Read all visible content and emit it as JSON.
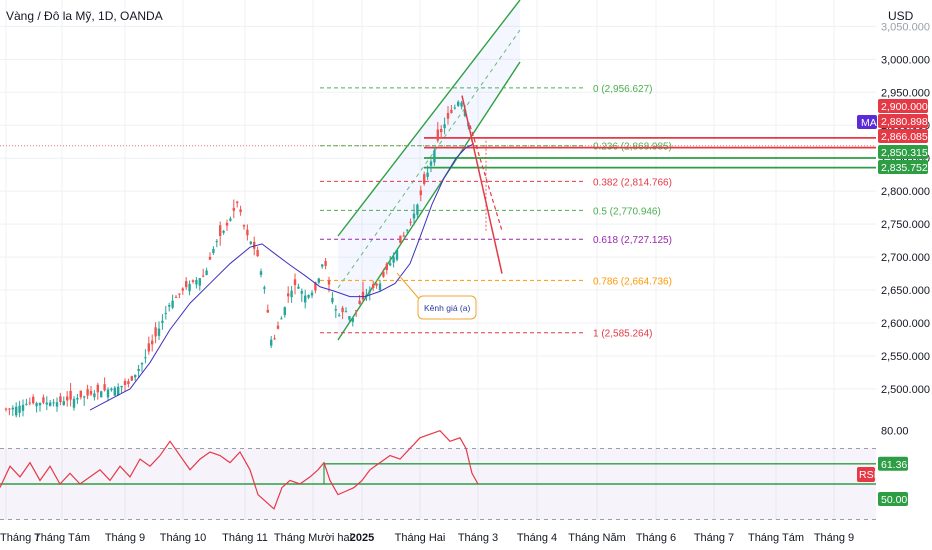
{
  "header": {
    "symbol_title": "Vàng / Đô la Mỹ, 1D, OANDA",
    "currency": "USD"
  },
  "chart_data": {
    "type": "candlestick",
    "title": "Vàng / Đô la Mỹ, 1D, OANDA",
    "xlabel": "",
    "ylabel": "USD",
    "ylim": [
      2465,
      3090
    ],
    "y_ticks": [
      "2,500.000",
      "2,550.000",
      "2,600.000",
      "2,650.000",
      "2,700.000",
      "2,750.000",
      "2,800.000",
      "2,850.000",
      "2,900.000",
      "2,950.000",
      "3,000.000",
      "3,050.000"
    ],
    "x_tick_labels": [
      "Tháng 7",
      "Tháng Tám",
      "Tháng 9",
      "Tháng 10",
      "Tháng 11",
      "Tháng Mười hai",
      "2025",
      "Tháng Hai",
      "Tháng 3",
      "Tháng 4",
      "Tháng Năm",
      "Tháng 6",
      "Tháng 7",
      "Tháng Tám",
      "Tháng 9"
    ],
    "price_path": [
      [
        0,
        2466
      ],
      [
        28,
        2478
      ],
      [
        60,
        2480
      ],
      [
        88,
        2490
      ],
      [
        100,
        2496
      ],
      [
        130,
        2508
      ],
      [
        150,
        2560
      ],
      [
        170,
        2630
      ],
      [
        190,
        2660
      ],
      [
        205,
        2672
      ],
      [
        215,
        2720
      ],
      [
        228,
        2750
      ],
      [
        238,
        2785
      ],
      [
        245,
        2740
      ],
      [
        252,
        2720
      ],
      [
        258,
        2700
      ],
      [
        265,
        2650
      ],
      [
        272,
        2565
      ],
      [
        280,
        2600
      ],
      [
        288,
        2640
      ],
      [
        296,
        2660
      ],
      [
        306,
        2640
      ],
      [
        316,
        2650
      ],
      [
        324,
        2700
      ],
      [
        330,
        2650
      ],
      [
        338,
        2610
      ],
      [
        345,
        2620
      ],
      [
        352,
        2605
      ],
      [
        360,
        2630
      ],
      [
        370,
        2650
      ],
      [
        380,
        2660
      ],
      [
        390,
        2690
      ],
      [
        400,
        2720
      ],
      [
        410,
        2750
      ],
      [
        420,
        2790
      ],
      [
        428,
        2830
      ],
      [
        436,
        2870
      ],
      [
        444,
        2900
      ],
      [
        452,
        2920
      ],
      [
        460,
        2940
      ],
      [
        466,
        2920
      ],
      [
        472,
        2880
      ]
    ],
    "ma_path": [
      [
        90,
        2468
      ],
      [
        130,
        2500
      ],
      [
        150,
        2540
      ],
      [
        170,
        2590
      ],
      [
        190,
        2630
      ],
      [
        210,
        2660
      ],
      [
        230,
        2690
      ],
      [
        250,
        2715
      ],
      [
        262,
        2720
      ],
      [
        275,
        2705
      ],
      [
        290,
        2688
      ],
      [
        305,
        2672
      ],
      [
        320,
        2655
      ],
      [
        335,
        2648
      ],
      [
        350,
        2640
      ],
      [
        365,
        2640
      ],
      [
        380,
        2648
      ],
      [
        395,
        2660
      ],
      [
        410,
        2690
      ],
      [
        420,
        2730
      ],
      [
        432,
        2780
      ],
      [
        444,
        2820
      ],
      [
        456,
        2850
      ],
      [
        466,
        2866
      ],
      [
        474,
        2872
      ]
    ],
    "fibonacci": [
      {
        "level": "0",
        "label": "0 (2,956.627)",
        "price": 2956.627,
        "color": "#4caf50"
      },
      {
        "level": "0.236",
        "label": "0.236 (2,868.985)",
        "price": 2868.985,
        "color": "#4caf50"
      },
      {
        "level": "0.382",
        "label": "0.382 (2,814.766)",
        "price": 2814.766,
        "color": "#e53946"
      },
      {
        "level": "0.5",
        "label": "0.5 (2,770.946)",
        "price": 2770.946,
        "color": "#4caf50"
      },
      {
        "level": "0.618",
        "label": "0.618 (2,727.125)",
        "price": 2727.125,
        "color": "#9c27b0"
      },
      {
        "level": "0.786",
        "label": "0.786 (2,664.736)",
        "price": 2664.736,
        "color": "#ff9800"
      },
      {
        "level": "1",
        "label": "1 (2,585.264)",
        "price": 2585.264,
        "color": "#e53946"
      }
    ],
    "price_badges": [
      {
        "text": "2,900.000",
        "price": 2900.0,
        "color": "#e53946"
      },
      {
        "text": "2,880.898",
        "price": 2880.898,
        "color": "#e53946"
      },
      {
        "text": "2,866.085",
        "price": 2866.085,
        "color": "#e53946"
      },
      {
        "text": "2,850.315",
        "price": 2850.315,
        "color": "#2e9e44"
      },
      {
        "text": "2,835.752",
        "price": 2835.752,
        "color": "#2e9e44"
      }
    ],
    "horizontal_levels": [
      {
        "price": 2880.898,
        "color": "#e53946"
      },
      {
        "price": 2866.085,
        "color": "#e53946"
      },
      {
        "price": 2850.315,
        "color": "#2e9e44"
      },
      {
        "price": 2835.752,
        "color": "#2e9e44"
      }
    ],
    "ma_label": "MA",
    "channel_label": "Kênh giá (a)",
    "rsi": {
      "label": "RSI",
      "y_tick": "80.00",
      "levels": [
        "61.36",
        "50.00"
      ],
      "ylim": [
        32,
        86
      ],
      "band": [
        30,
        70
      ],
      "values": [
        [
          0,
          48
        ],
        [
          10,
          60
        ],
        [
          20,
          54
        ],
        [
          30,
          62
        ],
        [
          40,
          52
        ],
        [
          50,
          60
        ],
        [
          60,
          50
        ],
        [
          70,
          56
        ],
        [
          80,
          50
        ],
        [
          90,
          54
        ],
        [
          100,
          58
        ],
        [
          110,
          52
        ],
        [
          120,
          60
        ],
        [
          130,
          54
        ],
        [
          140,
          64
        ],
        [
          150,
          60
        ],
        [
          160,
          66
        ],
        [
          170,
          74
        ],
        [
          180,
          66
        ],
        [
          190,
          58
        ],
        [
          200,
          64
        ],
        [
          210,
          68
        ],
        [
          220,
          66
        ],
        [
          230,
          62
        ],
        [
          240,
          68
        ],
        [
          250,
          58
        ],
        [
          258,
          44
        ],
        [
          266,
          40
        ],
        [
          274,
          36
        ],
        [
          282,
          48
        ],
        [
          290,
          52
        ],
        [
          300,
          50
        ],
        [
          310,
          54
        ],
        [
          318,
          58
        ],
        [
          324,
          62
        ],
        [
          330,
          52
        ],
        [
          338,
          44
        ],
        [
          346,
          46
        ],
        [
          354,
          48
        ],
        [
          362,
          52
        ],
        [
          370,
          58
        ],
        [
          380,
          62
        ],
        [
          390,
          66
        ],
        [
          400,
          64
        ],
        [
          410,
          70
        ],
        [
          420,
          76
        ],
        [
          430,
          78
        ],
        [
          440,
          80
        ],
        [
          450,
          74
        ],
        [
          460,
          76
        ],
        [
          466,
          70
        ],
        [
          472,
          56
        ],
        [
          478,
          50
        ]
      ]
    }
  },
  "colors": {
    "up_candle": "#26a69a",
    "down_candle": "#ef5350",
    "ma_line": "#3f2fbf",
    "rsi_line": "#e53946",
    "channel": "#2ea043",
    "grid": "#eef0f3"
  }
}
